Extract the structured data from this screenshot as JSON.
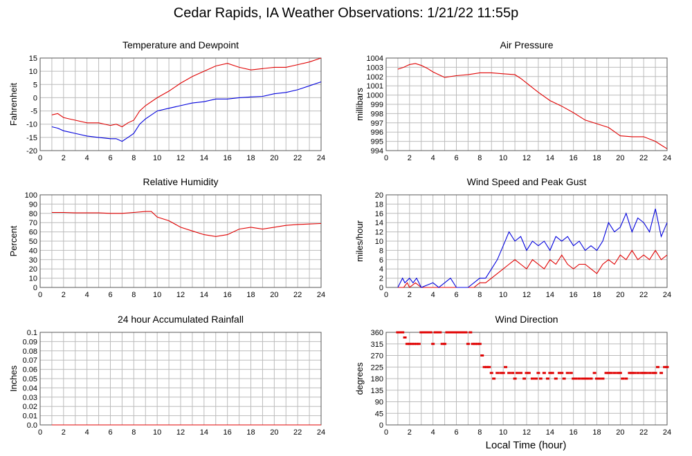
{
  "title": "Cedar Rapids, IA Weather Observations: 1/21/22 11:55p",
  "x_axis_label": "Local Time (hour)",
  "colors": {
    "red": "#e00000",
    "blue": "#0000dd",
    "grid": "#bbbbbb"
  },
  "chart_data": [
    {
      "type": "line",
      "title": "Temperature and Dewpoint",
      "ylabel": "Fahrenheit",
      "xlim": [
        0,
        24
      ],
      "ylim": [
        -20,
        15
      ],
      "xticks": [
        2,
        4,
        6,
        8,
        10,
        12,
        14,
        16,
        18,
        20,
        22,
        24
      ],
      "yticks": [
        -20,
        -15,
        -10,
        -5,
        0,
        5,
        10,
        15
      ],
      "series": [
        {
          "color": "red",
          "x": [
            1,
            1.5,
            2,
            2.5,
            3,
            4,
            5,
            6,
            6.5,
            7,
            7.5,
            8,
            8.5,
            9,
            10,
            11,
            12,
            13,
            14,
            15,
            16,
            17,
            18,
            19,
            20,
            21,
            22,
            23,
            24
          ],
          "values": [
            -6.5,
            -6,
            -7.5,
            -8,
            -8.5,
            -9.5,
            -9.5,
            -10.5,
            -10,
            -11,
            -9.5,
            -8.5,
            -5,
            -3,
            0,
            2.5,
            5.5,
            8,
            10,
            12,
            13,
            11.5,
            10.5,
            11,
            11.5,
            11.5,
            12.5,
            13.5,
            15
          ]
        },
        {
          "color": "blue",
          "x": [
            1,
            1.5,
            2,
            2.5,
            3,
            4,
            5,
            6,
            6.5,
            7,
            7.5,
            8,
            8.5,
            9,
            10,
            11,
            12,
            13,
            14,
            15,
            16,
            17,
            18,
            19,
            20,
            21,
            22,
            23,
            24
          ],
          "values": [
            -11,
            -11.5,
            -12.5,
            -13,
            -13.5,
            -14.5,
            -15,
            -15.5,
            -15.5,
            -16.5,
            -15,
            -13.5,
            -10,
            -8,
            -5,
            -4,
            -3,
            -2,
            -1.5,
            -0.5,
            -0.5,
            0,
            0.3,
            0.5,
            1.5,
            2,
            3,
            4.5,
            6
          ]
        }
      ]
    },
    {
      "type": "line",
      "title": "Air Pressure",
      "ylabel": "millibars",
      "xlim": [
        0,
        24
      ],
      "ylim": [
        994,
        1004
      ],
      "xticks": [
        2,
        4,
        6,
        8,
        10,
        12,
        14,
        16,
        18,
        20,
        22,
        24
      ],
      "yticks": [
        994,
        995,
        996,
        997,
        998,
        999,
        1000,
        1001,
        1002,
        1003,
        1004
      ],
      "series": [
        {
          "color": "red",
          "x": [
            1,
            1.5,
            2,
            2.5,
            3,
            3.5,
            4,
            4.5,
            5,
            6,
            7,
            8,
            9,
            10,
            11,
            11.5,
            12,
            13,
            14,
            15,
            16,
            17,
            18,
            19,
            20,
            21,
            22,
            23,
            23.5,
            24
          ],
          "values": [
            1002.8,
            1003,
            1003.3,
            1003.4,
            1003.2,
            1002.9,
            1002.5,
            1002.2,
            1001.9,
            1002.1,
            1002.2,
            1002.4,
            1002.4,
            1002.3,
            1002.2,
            1001.8,
            1001.3,
            1000.3,
            999.4,
            998.8,
            998.1,
            997.3,
            996.9,
            996.5,
            995.6,
            995.5,
            995.5,
            995,
            994.6,
            994.2
          ]
        }
      ]
    },
    {
      "type": "line",
      "title": "Relative Humidity",
      "ylabel": "Percent",
      "xlim": [
        0,
        24
      ],
      "ylim": [
        0,
        100
      ],
      "xticks": [
        2,
        4,
        6,
        8,
        10,
        12,
        14,
        16,
        18,
        20,
        22,
        24
      ],
      "yticks": [
        0,
        10,
        20,
        30,
        40,
        50,
        60,
        70,
        80,
        90,
        100
      ],
      "series": [
        {
          "color": "red",
          "x": [
            1,
            2,
            3,
            4,
            5,
            6,
            7,
            8,
            9,
            9.5,
            10,
            11,
            12,
            13,
            14,
            15,
            16,
            17,
            18,
            19,
            20,
            21,
            22,
            23,
            24
          ],
          "values": [
            81,
            81,
            80.5,
            80.5,
            80.5,
            80,
            80,
            81,
            82,
            82,
            76,
            72,
            65,
            61,
            57,
            55,
            57,
            63,
            65,
            63,
            65,
            67,
            68,
            68.5,
            69
          ]
        }
      ]
    },
    {
      "type": "line",
      "title": "Wind Speed and Peak Gust",
      "ylabel": "miles/hour",
      "xlim": [
        0,
        24
      ],
      "ylim": [
        0,
        20
      ],
      "xticks": [
        2,
        4,
        6,
        8,
        10,
        12,
        14,
        16,
        18,
        20,
        22,
        24
      ],
      "yticks": [
        0,
        2,
        4,
        6,
        8,
        10,
        12,
        14,
        16,
        18,
        20
      ],
      "series": [
        {
          "color": "red",
          "x": [
            1,
            1.5,
            1.8,
            2,
            2.5,
            3,
            4,
            5,
            6,
            7,
            7.5,
            8,
            8.5,
            9,
            9.5,
            10,
            10.5,
            11,
            11.5,
            12,
            12.5,
            13,
            13.5,
            14,
            14.5,
            15,
            15.5,
            16,
            16.5,
            17,
            17.5,
            18,
            18.5,
            19,
            19.5,
            20,
            20.5,
            21,
            21.5,
            22,
            22.5,
            23,
            23.5,
            24
          ],
          "values": [
            0,
            0,
            1,
            0,
            1,
            0,
            0,
            0,
            0,
            0,
            0,
            1,
            1,
            2,
            3,
            4,
            5,
            6,
            5,
            4,
            6,
            5,
            4,
            6,
            5,
            7,
            5,
            4,
            5,
            5,
            4,
            3,
            5,
            6,
            5,
            7,
            6,
            8,
            6,
            7,
            6,
            8,
            6,
            7
          ]
        },
        {
          "color": "blue",
          "x": [
            1,
            1.4,
            1.6,
            2,
            2.3,
            2.6,
            3,
            4,
            4.5,
            5,
            5.5,
            6,
            7,
            7.5,
            8,
            8.5,
            9,
            9.5,
            10,
            10.5,
            11,
            11.5,
            12,
            12.5,
            13,
            13.5,
            14,
            14.5,
            15,
            15.5,
            16,
            16.5,
            17,
            17.5,
            18,
            18.5,
            19,
            19.5,
            20,
            20.5,
            21,
            21.5,
            22,
            22.5,
            23,
            23.5,
            24
          ],
          "values": [
            0,
            2,
            1,
            2,
            1,
            2,
            0,
            1,
            0,
            1,
            2,
            0,
            0,
            1,
            2,
            2,
            4,
            6,
            9,
            12,
            10,
            11,
            8,
            10,
            9,
            10,
            8,
            11,
            10,
            11,
            9,
            10,
            8,
            9,
            8,
            10,
            14,
            12,
            13,
            16,
            12,
            15,
            14,
            12,
            17,
            11,
            14
          ]
        }
      ]
    },
    {
      "type": "line",
      "title": "24 hour Accumulated Rainfall",
      "ylabel": "Inches",
      "xlim": [
        0,
        24
      ],
      "ylim": [
        0,
        0.1
      ],
      "xticks": [
        2,
        4,
        6,
        8,
        10,
        12,
        14,
        16,
        18,
        20,
        22,
        24
      ],
      "yticks": [
        0.0,
        0.01,
        0.02,
        0.03,
        0.04,
        0.05,
        0.06,
        0.07,
        0.08,
        0.09,
        0.1
      ],
      "ytick_labels": [
        "0.0",
        "0.01",
        "0.02",
        "0.03",
        "0.04",
        "0.05",
        "0.06",
        "0.07",
        "0.08",
        "0.09",
        "0.1"
      ],
      "series": [
        {
          "color": "red",
          "x": [
            1,
            24
          ],
          "values": [
            0,
            0
          ]
        }
      ]
    },
    {
      "type": "scatter",
      "title": "Wind Direction",
      "ylabel": "degrees",
      "xlim": [
        0,
        24
      ],
      "ylim": [
        0,
        360
      ],
      "xticks": [
        2,
        4,
        6,
        8,
        10,
        12,
        14,
        16,
        18,
        20,
        22,
        24
      ],
      "yticks": [
        0,
        45,
        90,
        135,
        180,
        225,
        270,
        315,
        360
      ],
      "series": [
        {
          "color": "red",
          "x": [
            1,
            1.2,
            1.4,
            1.6,
            1.8,
            2,
            2.2,
            2.4,
            2.6,
            2.8,
            3,
            3.2,
            3.4,
            3.6,
            3.8,
            4,
            4.2,
            4.4,
            4.6,
            4.8,
            5,
            5.2,
            5.4,
            5.6,
            5.8,
            6,
            6.2,
            6.4,
            6.6,
            6.8,
            7,
            7.2,
            7.4,
            7.6,
            7.8,
            8,
            8.2,
            8.4,
            8.6,
            8.8,
            9,
            9.2,
            9.5,
            9.8,
            10,
            10.2,
            10.5,
            10.8,
            11,
            11.2,
            11.5,
            11.8,
            12,
            12.2,
            12.5,
            12.8,
            13,
            13.2,
            13.5,
            13.8,
            14,
            14.2,
            14.5,
            14.8,
            15,
            15.2,
            15.5,
            15.8,
            16,
            16.2,
            16.5,
            16.8,
            17,
            17.2,
            17.5,
            17.8,
            18,
            18.2,
            18.5,
            18.8,
            19,
            19.2,
            19.5,
            19.8,
            20,
            20.2,
            20.5,
            20.8,
            21,
            21.2,
            21.5,
            21.8,
            22,
            22.2,
            22.5,
            22.8,
            23,
            23.2,
            23.5,
            23.8,
            24
          ],
          "values": [
            360,
            360,
            360,
            340,
            315,
            315,
            315,
            315,
            315,
            315,
            360,
            360,
            360,
            360,
            360,
            315,
            360,
            360,
            360,
            315,
            315,
            360,
            360,
            360,
            360,
            360,
            360,
            360,
            360,
            360,
            315,
            360,
            315,
            315,
            315,
            315,
            270,
            225,
            225,
            225,
            202,
            180,
            202,
            202,
            202,
            225,
            202,
            202,
            180,
            202,
            202,
            180,
            202,
            202,
            180,
            180,
            202,
            180,
            202,
            180,
            202,
            202,
            180,
            202,
            202,
            180,
            202,
            202,
            180,
            180,
            180,
            180,
            180,
            180,
            180,
            202,
            180,
            180,
            180,
            202,
            202,
            202,
            202,
            202,
            202,
            180,
            180,
            202,
            202,
            202,
            202,
            202,
            202,
            202,
            202,
            202,
            202,
            225,
            202,
            225,
            225
          ]
        }
      ]
    }
  ]
}
